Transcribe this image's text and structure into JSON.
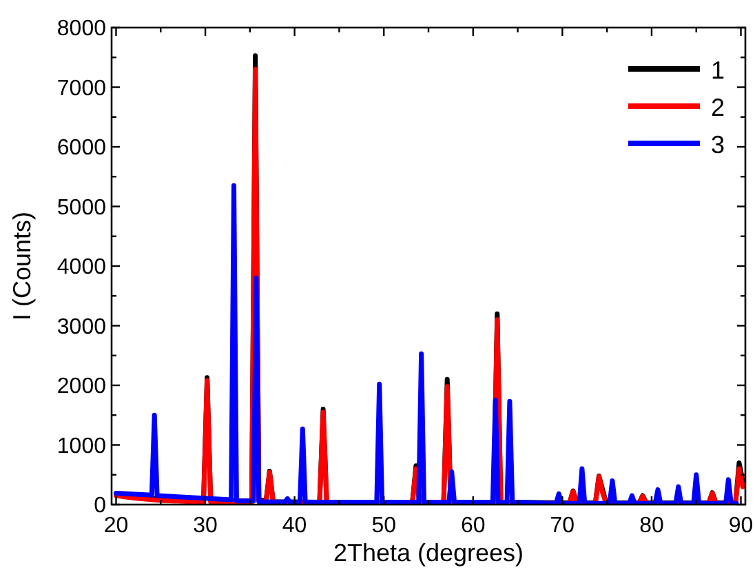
{
  "chart_data": {
    "type": "line",
    "xlabel": "2Theta (degrees)",
    "ylabel": "I (Counts)",
    "xlim": [
      19.5,
      90.5
    ],
    "ylim": [
      0,
      8000
    ],
    "xticks": [
      20,
      {
        "value": 25,
        "label": null
      },
      30,
      {
        "value": 35,
        "label": null
      },
      40,
      {
        "value": 45,
        "label": null
      },
      50,
      {
        "value": 55,
        "label": null
      },
      60,
      {
        "value": 65,
        "label": null
      },
      70,
      {
        "value": 75,
        "label": null
      },
      80,
      {
        "value": 85,
        "label": null
      },
      90
    ],
    "yticks": [
      0,
      {
        "value": 500,
        "label": null
      },
      1000,
      {
        "value": 1500,
        "label": null
      },
      2000,
      {
        "value": 2500,
        "label": null
      },
      3000,
      {
        "value": 3500,
        "label": null
      },
      4000,
      {
        "value": 4500,
        "label": null
      },
      5000,
      {
        "value": 5500,
        "label": null
      },
      6000,
      {
        "value": 6500,
        "label": null
      },
      7000,
      {
        "value": 7500,
        "label": null
      },
      8000
    ],
    "grid": false,
    "legend": "top right",
    "marker": "none",
    "line_style": "solid",
    "series": [
      {
        "name": "1",
        "color": "#000000",
        "x": [
          20,
          22,
          25,
          29.8,
          30.2,
          30.6,
          35.2,
          35.6,
          36.0,
          36.8,
          37.2,
          37.6,
          42.8,
          43.2,
          43.6,
          47,
          53.2,
          53.6,
          54.0,
          56.7,
          57.1,
          57.5,
          62.3,
          62.7,
          63.1,
          70.8,
          71.2,
          71.6,
          73.7,
          74.1,
          74.5,
          74.9,
          78.6,
          79,
          79.4,
          86.4,
          86.8,
          87.2,
          89.4,
          89.8,
          90.2
        ],
        "values": [
          170,
          null,
          90,
          60,
          2130,
          60,
          60,
          7530,
          80,
          60,
          560,
          50,
          40,
          1600,
          40,
          40,
          40,
          650,
          40,
          40,
          2100,
          40,
          40,
          3200,
          40,
          30,
          230,
          30,
          30,
          480,
          null,
          30,
          30,
          150,
          30,
          30,
          200,
          30,
          30,
          700,
          400
        ]
      },
      {
        "name": "2",
        "color": "#ff0000",
        "x": [
          20,
          22,
          25,
          29.8,
          30.2,
          30.6,
          35.2,
          35.6,
          36.0,
          36.8,
          37.2,
          37.6,
          42.8,
          43.2,
          43.6,
          47,
          53.2,
          53.6,
          54.0,
          56.7,
          57.1,
          57.5,
          62.3,
          62.7,
          63.1,
          70.8,
          71.2,
          71.6,
          73.7,
          74.1,
          74.5,
          74.9,
          78.6,
          79,
          79.4,
          86.4,
          86.8,
          87.2,
          89.4,
          89.8,
          90.2
        ],
        "values": [
          150,
          110,
          70,
          40,
          2080,
          40,
          40,
          7300,
          60,
          40,
          540,
          30,
          30,
          1550,
          30,
          null,
          30,
          600,
          30,
          30,
          1980,
          30,
          30,
          3100,
          30,
          20,
          220,
          20,
          20,
          470,
          200,
          20,
          20,
          140,
          20,
          20,
          190,
          20,
          20,
          600,
          300
        ]
      },
      {
        "name": "3",
        "color": "#0000ff",
        "x": [
          20,
          24.0,
          24.3,
          24.6,
          32.9,
          33.2,
          33.5,
          35.4,
          35.7,
          36.0,
          38.9,
          39.2,
          39.5,
          40.6,
          40.9,
          41.2,
          49.2,
          49.5,
          49.8,
          53.9,
          54.2,
          54.5,
          57.3,
          57.6,
          57.9,
          62.2,
          62.5,
          62.8,
          63.8,
          64.1,
          64.4,
          69.3,
          69.6,
          69.9,
          71.9,
          72.2,
          72.5,
          75.3,
          75.6,
          75.9,
          77.5,
          77.8,
          78.1,
          80.4,
          80.7,
          81.0,
          82.7,
          83,
          83.3,
          84.7,
          85,
          85.3,
          88.3,
          88.6,
          88.9,
          89.5
        ],
        "values": [
          190,
          160,
          1500,
          150,
          80,
          5350,
          60,
          60,
          3800,
          50,
          40,
          100,
          40,
          40,
          1270,
          40,
          40,
          2020,
          40,
          40,
          2530,
          40,
          40,
          550,
          40,
          40,
          1750,
          40,
          40,
          1730,
          40,
          20,
          180,
          20,
          20,
          600,
          20,
          20,
          400,
          20,
          20,
          150,
          20,
          20,
          250,
          20,
          20,
          300,
          20,
          20,
          500,
          20,
          20,
          420,
          20,
          20
        ]
      }
    ]
  }
}
